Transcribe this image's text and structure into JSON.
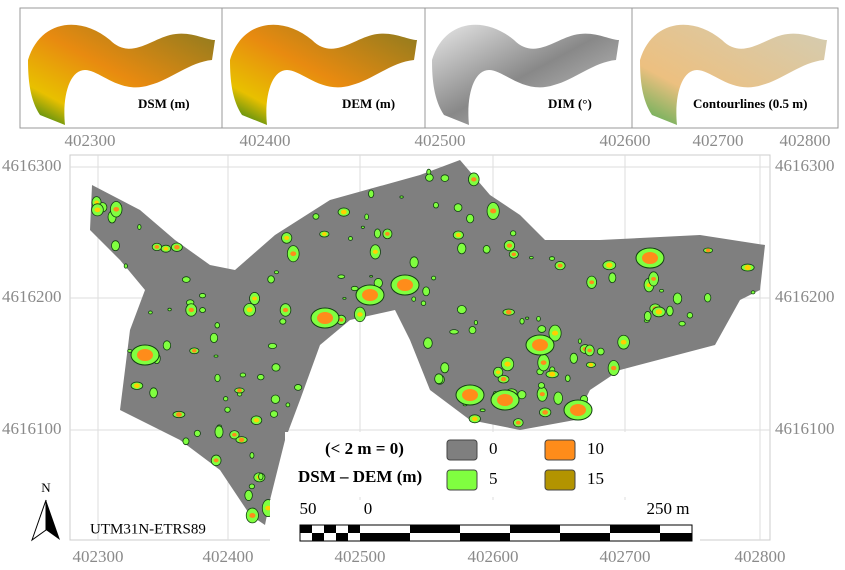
{
  "panels": [
    {
      "label": "DSM (m)"
    },
    {
      "label": "DEM (m)"
    },
    {
      "label": "DIM (°)"
    },
    {
      "label": "Contourlines (0.5 m)"
    }
  ],
  "top_axis": {
    "ticks": [
      "402300",
      "402400",
      "402500",
      "402600",
      "402700",
      "402800"
    ]
  },
  "map": {
    "x_ticks": [
      "402300",
      "402400",
      "402500",
      "402600",
      "402700",
      "402800"
    ],
    "y_ticks": [
      "4616300",
      "4616200",
      "4616100"
    ],
    "north": "N",
    "projection": "UTM31N-ETRS89"
  },
  "legend": {
    "note": "(< 2 m = 0)",
    "title": "DSM – DEM (m)",
    "items": [
      {
        "label": "0",
        "color": "#7f7f7f"
      },
      {
        "label": "10",
        "color": "#ff8c1a"
      },
      {
        "label": "5",
        "color": "#80ff40"
      },
      {
        "label": "15",
        "color": "#b39400"
      }
    ]
  },
  "scale_bar": {
    "labels": [
      "50",
      "0",
      "250 m"
    ]
  }
}
